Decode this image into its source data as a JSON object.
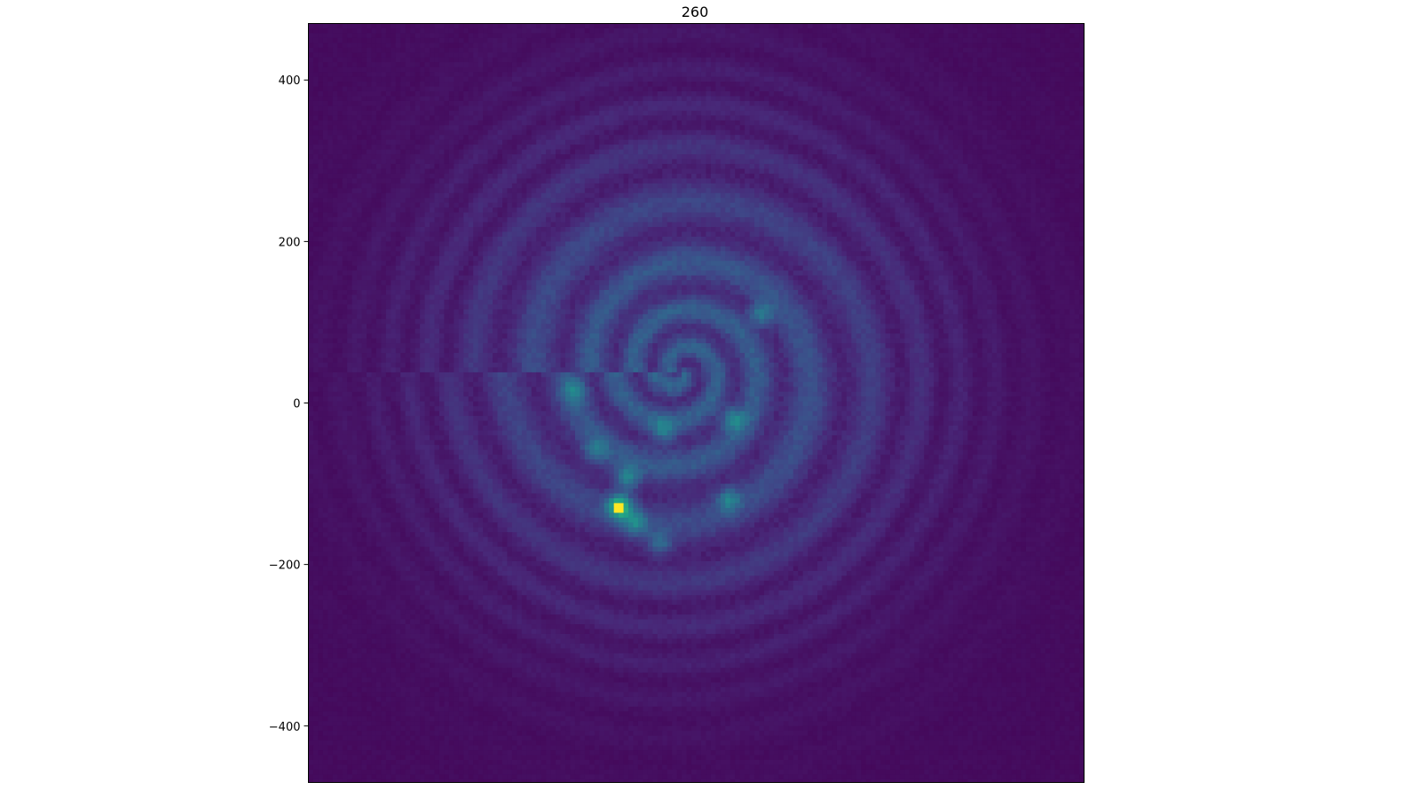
{
  "chart_data": {
    "type": "heatmap",
    "title": "260",
    "xlabel": "",
    "ylabel": "",
    "xlim": [
      -480,
      480
    ],
    "ylim": [
      -470,
      470
    ],
    "x_ticks_visible": false,
    "y_ticks": [
      400,
      200,
      0,
      -200,
      -400
    ],
    "y_tick_labels": [
      "400",
      "200",
      "0",
      "−200",
      "−400"
    ],
    "grid": false,
    "colormap": "viridis",
    "colors": {
      "low": "#440154",
      "mid": "#2a788e",
      "high": "#fde725"
    },
    "pattern": "concentric swirling rings centered near (0, 0), brightest around (-90, -130)",
    "peak": {
      "x": -95,
      "y": -128
    },
    "bright_spots": [
      {
        "x": -95,
        "y": -128,
        "level": 1.0
      },
      {
        "x": -85,
        "y": -93,
        "level": 0.55
      },
      {
        "x": 45,
        "y": -20,
        "level": 0.5
      },
      {
        "x": 80,
        "y": 110,
        "level": 0.5
      },
      {
        "x": -75,
        "y": -148,
        "level": 0.48
      },
      {
        "x": 40,
        "y": -120,
        "level": 0.45
      },
      {
        "x": -40,
        "y": -35,
        "level": 0.42
      },
      {
        "x": -150,
        "y": 15,
        "level": 0.4
      },
      {
        "x": -125,
        "y": -60,
        "level": 0.38
      },
      {
        "x": -45,
        "y": -175,
        "level": 0.38
      }
    ]
  }
}
